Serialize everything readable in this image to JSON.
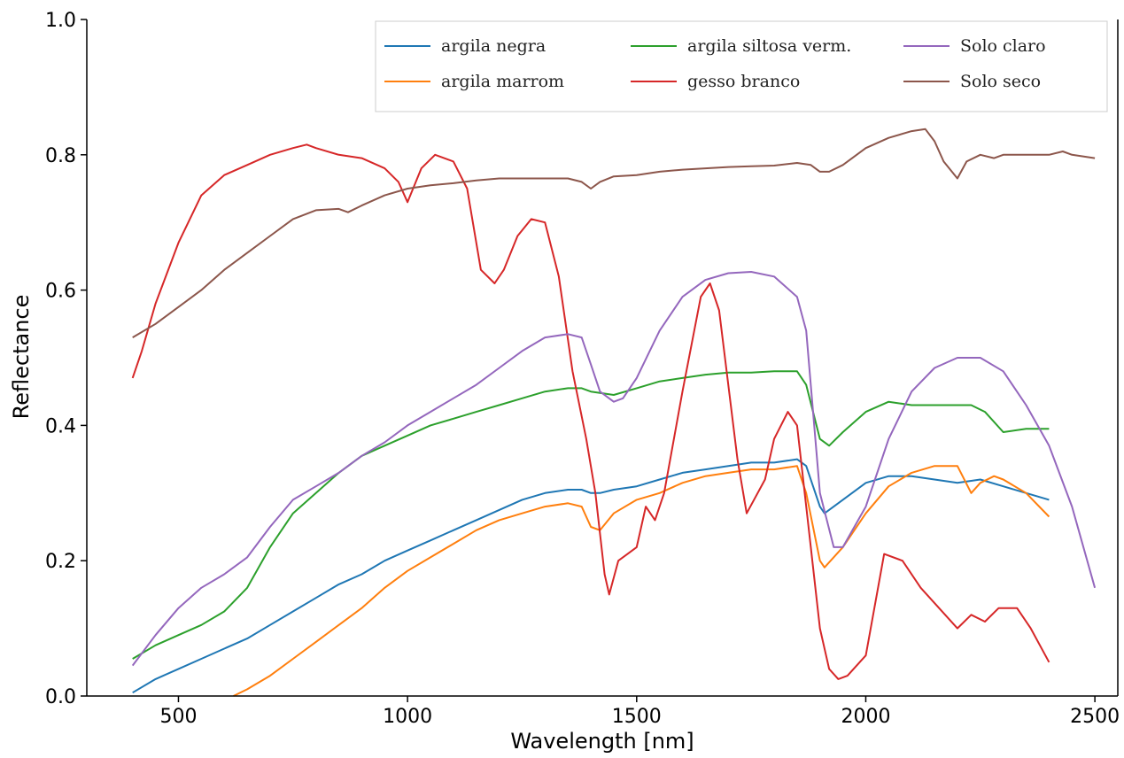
{
  "chart_data": {
    "type": "line",
    "title": "",
    "xlabel": "Wavelength [nm]",
    "ylabel": "Reflectance",
    "xlim": [
      300,
      2550
    ],
    "ylim": [
      0.0,
      1.0
    ],
    "xticks": [
      "500",
      "1000",
      "1500",
      "2000",
      "2500"
    ],
    "yticks": [
      "0.0",
      "0.2",
      "0.4",
      "0.6",
      "0.8",
      "1.0"
    ],
    "grid": false,
    "legend_position": "top-right",
    "series": [
      {
        "name": "argila negra",
        "color": "#1f77b4",
        "x": [
          400,
          450,
          500,
          550,
          600,
          650,
          700,
          750,
          800,
          850,
          900,
          950,
          1000,
          1050,
          1100,
          1150,
          1200,
          1250,
          1300,
          1350,
          1380,
          1400,
          1420,
          1450,
          1500,
          1550,
          1600,
          1650,
          1700,
          1750,
          1800,
          1850,
          1870,
          1900,
          1910,
          1950,
          2000,
          2050,
          2100,
          2150,
          2200,
          2250,
          2300,
          2350,
          2400
        ],
        "y": [
          0.005,
          0.025,
          0.04,
          0.055,
          0.07,
          0.085,
          0.105,
          0.125,
          0.145,
          0.165,
          0.18,
          0.2,
          0.215,
          0.23,
          0.245,
          0.26,
          0.275,
          0.29,
          0.3,
          0.305,
          0.305,
          0.3,
          0.3,
          0.305,
          0.31,
          0.32,
          0.33,
          0.335,
          0.34,
          0.345,
          0.345,
          0.35,
          0.34,
          0.28,
          0.27,
          0.29,
          0.315,
          0.325,
          0.325,
          0.32,
          0.315,
          0.32,
          0.31,
          0.3,
          0.29
        ]
      },
      {
        "name": "argila marrom",
        "color": "#ff7f0e",
        "x": [
          620,
          650,
          700,
          750,
          800,
          850,
          900,
          950,
          1000,
          1050,
          1100,
          1150,
          1200,
          1250,
          1300,
          1350,
          1380,
          1400,
          1420,
          1450,
          1500,
          1550,
          1600,
          1650,
          1700,
          1750,
          1800,
          1850,
          1870,
          1900,
          1910,
          1950,
          2000,
          2050,
          2100,
          2150,
          2200,
          2230,
          2250,
          2280,
          2300,
          2350,
          2400
        ],
        "y": [
          0.0,
          0.01,
          0.03,
          0.055,
          0.08,
          0.105,
          0.13,
          0.16,
          0.185,
          0.205,
          0.225,
          0.245,
          0.26,
          0.27,
          0.28,
          0.285,
          0.28,
          0.25,
          0.245,
          0.27,
          0.29,
          0.3,
          0.315,
          0.325,
          0.33,
          0.335,
          0.335,
          0.34,
          0.3,
          0.2,
          0.19,
          0.22,
          0.27,
          0.31,
          0.33,
          0.34,
          0.34,
          0.3,
          0.315,
          0.325,
          0.32,
          0.3,
          0.265
        ]
      },
      {
        "name": "argila siltosa verm.",
        "color": "#2ca02c",
        "x": [
          400,
          450,
          500,
          550,
          600,
          650,
          700,
          750,
          800,
          850,
          900,
          950,
          1000,
          1050,
          1100,
          1150,
          1200,
          1250,
          1300,
          1350,
          1380,
          1400,
          1450,
          1500,
          1550,
          1600,
          1650,
          1700,
          1750,
          1800,
          1850,
          1870,
          1900,
          1920,
          1950,
          2000,
          2050,
          2100,
          2150,
          2200,
          2230,
          2260,
          2300,
          2350,
          2400
        ],
        "y": [
          0.055,
          0.075,
          0.09,
          0.105,
          0.125,
          0.16,
          0.22,
          0.27,
          0.3,
          0.33,
          0.355,
          0.37,
          0.385,
          0.4,
          0.41,
          0.42,
          0.43,
          0.44,
          0.45,
          0.455,
          0.455,
          0.45,
          0.445,
          0.455,
          0.465,
          0.47,
          0.475,
          0.478,
          0.478,
          0.48,
          0.48,
          0.46,
          0.38,
          0.37,
          0.39,
          0.42,
          0.435,
          0.43,
          0.43,
          0.43,
          0.43,
          0.42,
          0.39,
          0.395,
          0.395
        ]
      },
      {
        "name": "gesso branco",
        "color": "#d62728",
        "x": [
          400,
          420,
          450,
          500,
          550,
          600,
          650,
          700,
          750,
          780,
          800,
          850,
          900,
          950,
          980,
          1000,
          1030,
          1060,
          1100,
          1130,
          1160,
          1190,
          1210,
          1240,
          1270,
          1300,
          1330,
          1360,
          1390,
          1410,
          1430,
          1440,
          1460,
          1480,
          1500,
          1520,
          1540,
          1560,
          1600,
          1640,
          1660,
          1680,
          1720,
          1740,
          1780,
          1800,
          1830,
          1850,
          1880,
          1900,
          1920,
          1940,
          1960,
          2000,
          2040,
          2080,
          2120,
          2160,
          2200,
          2230,
          2260,
          2290,
          2330,
          2360,
          2400
        ],
        "y": [
          0.47,
          0.51,
          0.58,
          0.67,
          0.74,
          0.77,
          0.785,
          0.8,
          0.81,
          0.815,
          0.81,
          0.8,
          0.795,
          0.78,
          0.76,
          0.73,
          0.78,
          0.8,
          0.79,
          0.75,
          0.63,
          0.61,
          0.63,
          0.68,
          0.705,
          0.7,
          0.62,
          0.48,
          0.38,
          0.3,
          0.18,
          0.15,
          0.2,
          0.21,
          0.22,
          0.28,
          0.26,
          0.3,
          0.45,
          0.59,
          0.61,
          0.57,
          0.35,
          0.27,
          0.32,
          0.38,
          0.42,
          0.4,
          0.22,
          0.1,
          0.04,
          0.025,
          0.03,
          0.06,
          0.21,
          0.2,
          0.16,
          0.13,
          0.1,
          0.12,
          0.11,
          0.13,
          0.13,
          0.1,
          0.05
        ]
      },
      {
        "name": "Solo claro",
        "color": "#9467bd",
        "x": [
          400,
          450,
          500,
          550,
          600,
          650,
          700,
          750,
          800,
          850,
          900,
          950,
          1000,
          1050,
          1100,
          1150,
          1200,
          1250,
          1300,
          1350,
          1380,
          1400,
          1420,
          1450,
          1470,
          1500,
          1550,
          1600,
          1650,
          1700,
          1750,
          1800,
          1850,
          1870,
          1900,
          1930,
          1950,
          2000,
          2050,
          2100,
          2150,
          2200,
          2250,
          2300,
          2350,
          2400,
          2450,
          2500
        ],
        "y": [
          0.045,
          0.09,
          0.13,
          0.16,
          0.18,
          0.205,
          0.25,
          0.29,
          0.31,
          0.33,
          0.355,
          0.375,
          0.4,
          0.42,
          0.44,
          0.46,
          0.485,
          0.51,
          0.53,
          0.535,
          0.53,
          0.49,
          0.45,
          0.435,
          0.44,
          0.47,
          0.54,
          0.59,
          0.615,
          0.625,
          0.627,
          0.62,
          0.59,
          0.54,
          0.3,
          0.22,
          0.22,
          0.28,
          0.38,
          0.45,
          0.485,
          0.5,
          0.5,
          0.48,
          0.43,
          0.37,
          0.28,
          0.16
        ]
      },
      {
        "name": "Solo seco",
        "color": "#8c564b",
        "x": [
          400,
          450,
          500,
          550,
          600,
          650,
          700,
          750,
          800,
          850,
          870,
          900,
          950,
          1000,
          1050,
          1100,
          1150,
          1200,
          1250,
          1300,
          1350,
          1380,
          1400,
          1420,
          1450,
          1500,
          1550,
          1600,
          1650,
          1700,
          1750,
          1800,
          1850,
          1880,
          1900,
          1920,
          1950,
          2000,
          2050,
          2100,
          2130,
          2150,
          2170,
          2200,
          2220,
          2250,
          2280,
          2300,
          2350,
          2400,
          2430,
          2450,
          2500
        ],
        "y": [
          0.53,
          0.55,
          0.575,
          0.6,
          0.63,
          0.655,
          0.68,
          0.705,
          0.718,
          0.72,
          0.715,
          0.725,
          0.74,
          0.75,
          0.755,
          0.758,
          0.762,
          0.765,
          0.765,
          0.765,
          0.765,
          0.76,
          0.75,
          0.76,
          0.768,
          0.77,
          0.775,
          0.778,
          0.78,
          0.782,
          0.783,
          0.784,
          0.788,
          0.785,
          0.775,
          0.775,
          0.785,
          0.81,
          0.825,
          0.835,
          0.838,
          0.82,
          0.79,
          0.765,
          0.79,
          0.8,
          0.795,
          0.8,
          0.8,
          0.8,
          0.805,
          0.8,
          0.795
        ]
      }
    ]
  }
}
